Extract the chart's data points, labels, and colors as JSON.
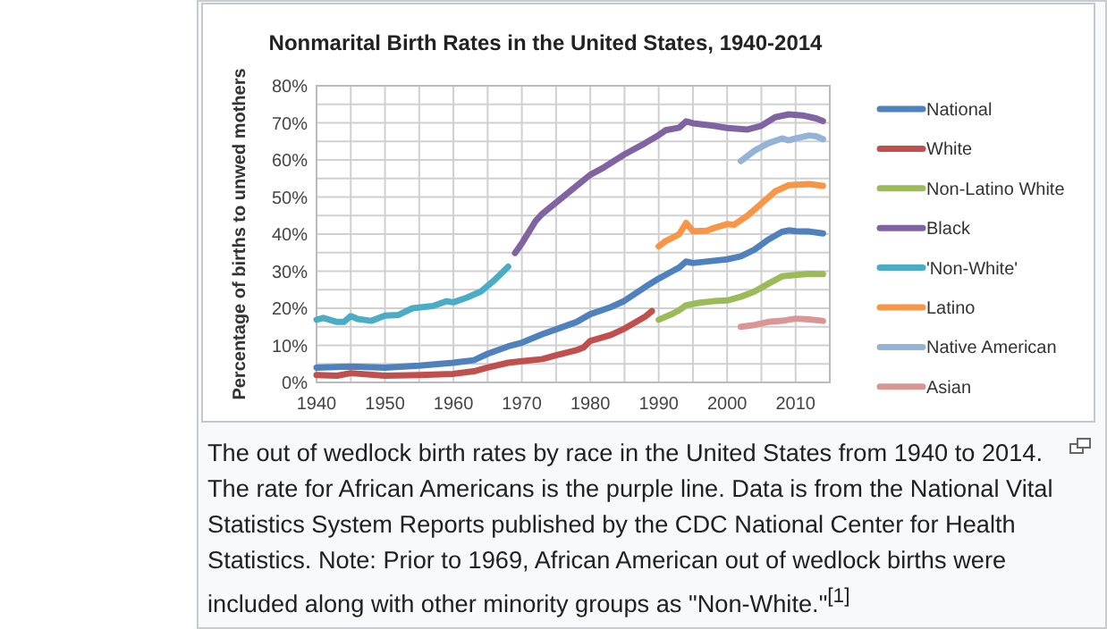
{
  "chart_data": {
    "type": "line",
    "title": "Nonmarital Birth Rates in the United States, 1940-2014",
    "ylabel": "Percentage of births to unwed mothers",
    "xlim": [
      1940,
      2015
    ],
    "xticks": [
      1940,
      {
        "value": 1945,
        "label": null
      },
      1950,
      {
        "value": 1955,
        "label": null
      },
      1960,
      {
        "value": 1965,
        "label": null
      },
      1970,
      {
        "value": 1975,
        "label": null
      },
      1980,
      {
        "value": 1985,
        "label": null
      },
      1990,
      {
        "value": 1995,
        "label": null
      },
      2000,
      {
        "value": 2005,
        "label": null
      },
      2010,
      {
        "value": 2015,
        "label": null
      }
    ],
    "ylim": [
      0,
      80
    ],
    "yticks": [
      {
        "value": 0,
        "label": "0%"
      },
      {
        "value": 5,
        "label": null
      },
      {
        "value": 10,
        "label": "10%"
      },
      {
        "value": 15,
        "label": null
      },
      {
        "value": 20,
        "label": "20%"
      },
      {
        "value": 25,
        "label": null
      },
      {
        "value": 30,
        "label": "30%"
      },
      {
        "value": 35,
        "label": null
      },
      {
        "value": 40,
        "label": "40%"
      },
      {
        "value": 45,
        "label": null
      },
      {
        "value": 50,
        "label": "50%"
      },
      {
        "value": 55,
        "label": null
      },
      {
        "value": 60,
        "label": "60%"
      },
      {
        "value": 65,
        "label": null
      },
      {
        "value": 70,
        "label": "70%"
      },
      {
        "value": 75,
        "label": null
      },
      {
        "value": 80,
        "label": "80%"
      }
    ],
    "grid": true,
    "legend": "right",
    "marker": "none",
    "line_style": "solid",
    "series": [
      {
        "name": "National",
        "color": "#4f81bd",
        "x": [
          1940,
          1945,
          1950,
          1955,
          1960,
          1963,
          1965,
          1968,
          1970,
          1973,
          1975,
          1978,
          1980,
          1983,
          1985,
          1988,
          1990,
          1992,
          1993,
          1994,
          1995,
          1998,
          2000,
          2002,
          2004,
          2006,
          2008,
          2009,
          2010,
          2012,
          2014
        ],
        "values": [
          4,
          4.3,
          4,
          4.5,
          5.3,
          6,
          7.7,
          9.7,
          10.7,
          13,
          14.3,
          16.3,
          18.4,
          20.3,
          22,
          25.7,
          28,
          30,
          31,
          32.6,
          32.2,
          32.8,
          33.2,
          34,
          35.8,
          38.5,
          40.6,
          41,
          40.8,
          40.7,
          40.2
        ]
      },
      {
        "name": "White",
        "color": "#c0504d",
        "x": [
          1940,
          1943,
          1945,
          1950,
          1955,
          1960,
          1963,
          1965,
          1968,
          1970,
          1973,
          1975,
          1978,
          1979,
          1980,
          1983,
          1985,
          1988,
          1989
        ],
        "values": [
          2,
          1.8,
          2.5,
          1.8,
          2,
          2.3,
          3,
          4,
          5.3,
          5.7,
          6.3,
          7.3,
          8.7,
          9.4,
          11.2,
          12.8,
          14.5,
          17.7,
          19.2
        ]
      },
      {
        "name": "Non-Latino White",
        "color": "#9bbb59",
        "x": [
          1990,
          1992,
          1993,
          1994,
          1996,
          1998,
          2000,
          2002,
          2004,
          2006,
          2008,
          2010,
          2012,
          2014
        ],
        "values": [
          16.9,
          18.5,
          19.5,
          20.8,
          21.5,
          21.9,
          22.1,
          23.1,
          24.5,
          26.6,
          28.6,
          29,
          29.3,
          29.2
        ]
      },
      {
        "name": "Black",
        "color": "#8064a2",
        "x": [
          1969,
          1970,
          1971,
          1972,
          1973,
          1975,
          1977,
          1980,
          1982,
          1985,
          1988,
          1990,
          1991,
          1993,
          1994,
          1995,
          1998,
          2000,
          2003,
          2005,
          2007,
          2009,
          2011,
          2013,
          2014
        ],
        "values": [
          34.9,
          37.5,
          40.5,
          43.5,
          45.5,
          48.5,
          51.5,
          56,
          58,
          61.5,
          64.5,
          66.7,
          68,
          68.7,
          70.4,
          69.9,
          69.2,
          68.6,
          68.2,
          69.2,
          71.5,
          72.3,
          72,
          71.2,
          70.5
        ]
      },
      {
        "name": "'Non-White'",
        "color": "#4bacc6",
        "x": [
          1940,
          1941,
          1943,
          1944,
          1945,
          1946,
          1948,
          1950,
          1952,
          1954,
          1957,
          1959,
          1960,
          1962,
          1964,
          1966,
          1968
        ],
        "values": [
          16.9,
          17.4,
          16.3,
          16.3,
          17.9,
          17.1,
          16.6,
          18,
          18.2,
          20,
          20.6,
          21.9,
          21.6,
          22.9,
          24.5,
          27.6,
          31.2
        ]
      },
      {
        "name": "Latino",
        "color": "#f79646",
        "x": [
          1990,
          1991,
          1992,
          1993,
          1994,
          1995,
          1997,
          1998,
          2000,
          2001,
          2003,
          2005,
          2007,
          2009,
          2012,
          2014
        ],
        "values": [
          36.7,
          38.1,
          39,
          40,
          43,
          40.8,
          40.9,
          41.6,
          42.7,
          42.5,
          45,
          48.2,
          51.5,
          53.2,
          53.5,
          53
        ]
      },
      {
        "name": "Native American",
        "color": "#95b3d7",
        "x": [
          2002,
          2004,
          2006,
          2008,
          2009,
          2010,
          2012,
          2013,
          2014
        ],
        "values": [
          59.7,
          62.5,
          64.5,
          65.8,
          65.3,
          65.8,
          66.6,
          66.4,
          65.6
        ]
      },
      {
        "name": "Asian",
        "color": "#d99694",
        "x": [
          2002,
          2004,
          2006,
          2008,
          2010,
          2012,
          2014
        ],
        "values": [
          15,
          15.5,
          16.3,
          16.6,
          17.2,
          17,
          16.6
        ]
      }
    ],
    "annotations": [
      "The out of wedlock birth rates by race in the United States from 1940 to 2014. The rate for African Americans is the purple line. Data is from the National Vital Statistics System Reports published by the CDC National Center for Health Statistics. Note: Prior to 1969, African American out of wedlock births were included along with other minority groups as \"Non-White.\"$^{[1]}$"
    ]
  }
}
